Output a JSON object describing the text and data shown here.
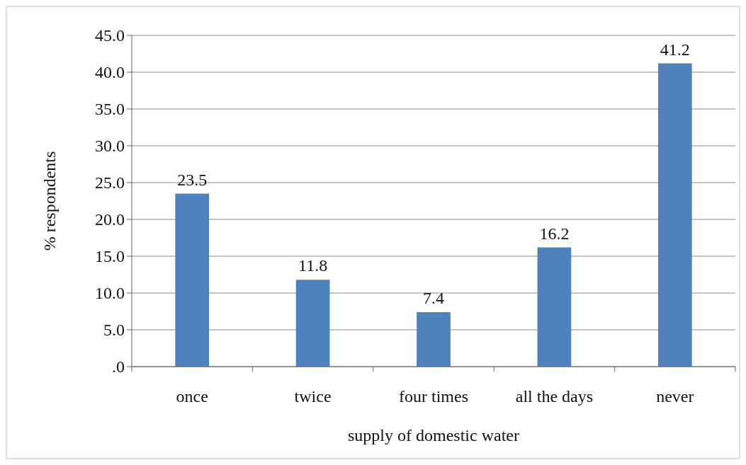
{
  "chart_data": {
    "type": "bar",
    "xlabel": "supply of domestic water",
    "ylabel": "% respondents",
    "categories": [
      "once",
      "twice",
      "four times",
      "all the days",
      "never"
    ],
    "values": [
      23.5,
      11.8,
      7.4,
      16.2,
      41.2
    ],
    "color": "#4f81bd",
    "ylim": [
      0,
      45
    ],
    "yticks": [
      {
        "value": 0,
        "label": ".0"
      },
      {
        "value": 5,
        "label": "5.0"
      },
      {
        "value": 10,
        "label": "10.0"
      },
      {
        "value": 15,
        "label": "15.0"
      },
      {
        "value": 20,
        "label": "20.0"
      },
      {
        "value": 25,
        "label": "25.0"
      },
      {
        "value": 30,
        "label": "30.0"
      },
      {
        "value": 35,
        "label": "35.0"
      },
      {
        "value": 40,
        "label": "40.0"
      },
      {
        "value": 45,
        "label": "45.0"
      }
    ],
    "grid": "y",
    "data_labels": true
  }
}
